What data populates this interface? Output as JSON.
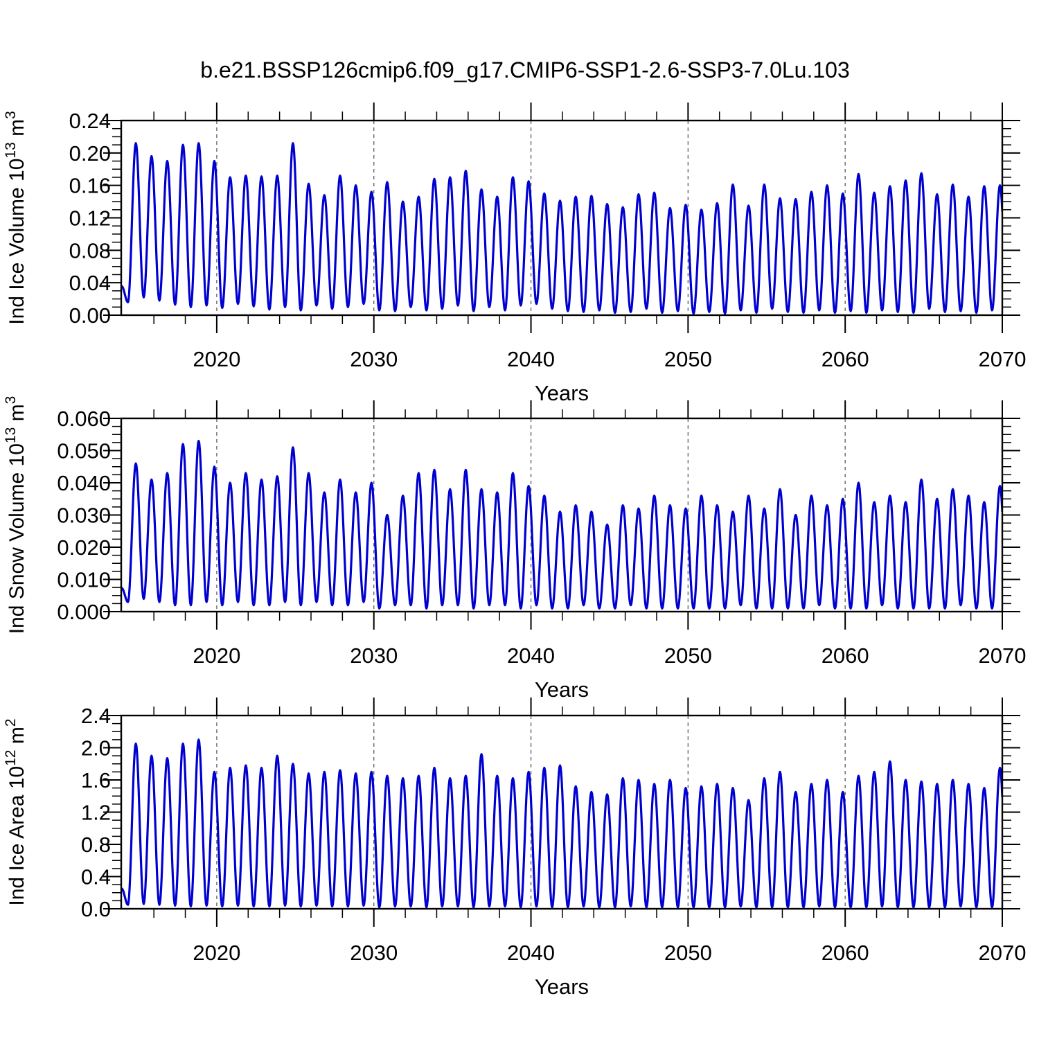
{
  "figure": {
    "title": "b.e21.BSSP126cmip6.f09_g17.CMIP6-SSP1-2.6-SSP3-7.0Lu.103",
    "background_color": "#ffffff",
    "line_color": "#0000d0",
    "axis_color": "#000000",
    "grid_color": "#666666"
  },
  "chart_data": [
    {
      "type": "line",
      "panel": "ice-volume",
      "xlabel": "Years",
      "ylabel_text": "Ind Ice Volume 10^13 m^3",
      "ylabel_parts": {
        "base": "Ind Ice Volume 10",
        "exp": "13",
        "mid": " m",
        "exp2": "3"
      },
      "x_range": [
        2013.92,
        2070
      ],
      "x_major_ticks": [
        2020,
        2030,
        2040,
        2050,
        2060,
        2070
      ],
      "x_minor_step": 2,
      "grid_decades": [
        2020,
        2030,
        2040,
        2050,
        2060
      ],
      "grid_style": "dashed-vertical",
      "ylim": [
        0,
        0.24
      ],
      "y_major_ticks": [
        0,
        0.04,
        0.08,
        0.12,
        0.16,
        0.2,
        0.24
      ],
      "ytick_labels": [
        "0.00",
        "0.04",
        "0.08",
        "0.12",
        "0.16",
        "0.20",
        "0.24"
      ],
      "y_minor_step": 0.01,
      "series": [
        {
          "name": "monthly-ice-volume",
          "start_year": 2014,
          "peak_phase": 0.85,
          "trough_phase": 0.35,
          "annual_peaks": [
            0.212,
            0.196,
            0.19,
            0.21,
            0.212,
            0.19,
            0.17,
            0.172,
            0.171,
            0.172,
            0.212,
            0.162,
            0.148,
            0.172,
            0.16,
            0.152,
            0.164,
            0.14,
            0.146,
            0.168,
            0.17,
            0.178,
            0.155,
            0.146,
            0.17,
            0.165,
            0.15,
            0.141,
            0.146,
            0.147,
            0.137,
            0.133,
            0.149,
            0.151,
            0.132,
            0.136,
            0.13,
            0.138,
            0.161,
            0.135,
            0.161,
            0.144,
            0.143,
            0.152,
            0.16,
            0.15,
            0.174,
            0.151,
            0.159,
            0.166,
            0.175,
            0.149,
            0.161,
            0.146,
            0.159,
            0.16
          ],
          "annual_troughs": [
            0.016,
            0.022,
            0.018,
            0.013,
            0.01,
            0.012,
            0.009,
            0.014,
            0.011,
            0.007,
            0.01,
            0.006,
            0.012,
            0.008,
            0.01,
            0.014,
            0.006,
            0.005,
            0.01,
            0.006,
            0.008,
            0.012,
            0.005,
            0.01,
            0.006,
            0.012,
            0.014,
            0.008,
            0.005,
            0.004,
            0.006,
            0.003,
            0.004,
            0.008,
            0.003,
            0.005,
            0.002,
            0.004,
            0.002,
            0.006,
            0.003,
            0.008,
            0.004,
            0.003,
            0.006,
            0.003,
            0.005,
            0.003,
            0.006,
            0.004,
            0.003,
            0.008,
            0.004,
            0.005,
            0.003,
            0.006
          ]
        }
      ]
    },
    {
      "type": "line",
      "panel": "snow-volume",
      "xlabel": "Years",
      "ylabel_text": "Ind Snow Volume 10^13 m^3",
      "ylabel_parts": {
        "base": "Ind Snow Volume 10",
        "exp": "13",
        "mid": " m",
        "exp2": "3"
      },
      "x_range": [
        2013.92,
        2070
      ],
      "x_major_ticks": [
        2020,
        2030,
        2040,
        2050,
        2060,
        2070
      ],
      "x_minor_step": 2,
      "grid_decades": [
        2020,
        2030,
        2040,
        2050,
        2060
      ],
      "grid_style": "dashed-vertical",
      "ylim": [
        0,
        0.06
      ],
      "y_major_ticks": [
        0,
        0.01,
        0.02,
        0.03,
        0.04,
        0.05,
        0.06
      ],
      "ytick_labels": [
        "0.000",
        "0.010",
        "0.020",
        "0.030",
        "0.040",
        "0.050",
        "0.060"
      ],
      "y_minor_step": 0.0025,
      "series": [
        {
          "name": "monthly-snow-volume",
          "start_year": 2014,
          "peak_phase": 0.85,
          "trough_phase": 0.35,
          "annual_peaks": [
            0.046,
            0.041,
            0.043,
            0.052,
            0.053,
            0.045,
            0.04,
            0.043,
            0.041,
            0.042,
            0.051,
            0.043,
            0.037,
            0.041,
            0.037,
            0.04,
            0.03,
            0.036,
            0.043,
            0.044,
            0.038,
            0.044,
            0.038,
            0.037,
            0.043,
            0.039,
            0.036,
            0.031,
            0.033,
            0.031,
            0.027,
            0.033,
            0.032,
            0.036,
            0.033,
            0.032,
            0.036,
            0.033,
            0.031,
            0.036,
            0.032,
            0.038,
            0.03,
            0.036,
            0.033,
            0.035,
            0.04,
            0.034,
            0.036,
            0.034,
            0.041,
            0.035,
            0.038,
            0.036,
            0.034,
            0.039
          ],
          "annual_troughs": [
            0.003,
            0.004,
            0.003,
            0.002,
            0.002,
            0.003,
            0.002,
            0.003,
            0.002,
            0.002,
            0.003,
            0.002,
            0.003,
            0.002,
            0.002,
            0.003,
            0.001,
            0.002,
            0.002,
            0.001,
            0.002,
            0.002,
            0.001,
            0.002,
            0.002,
            0.001,
            0.002,
            0.001,
            0.001,
            0.002,
            0.001,
            0.001,
            0.002,
            0.001,
            0.001,
            0.001,
            0.001,
            0.001,
            0.001,
            0.002,
            0.001,
            0.001,
            0.001,
            0.001,
            0.002,
            0.001,
            0.001,
            0.001,
            0.002,
            0.001,
            0.001,
            0.001,
            0.001,
            0.002,
            0.001,
            0.001
          ]
        }
      ]
    },
    {
      "type": "line",
      "panel": "ice-area",
      "xlabel": "Years",
      "ylabel_text": "Ind Ice Area 10^12 m^2",
      "ylabel_parts": {
        "base": "Ind Ice Area 10",
        "exp": "12",
        "mid": " m",
        "exp2": "2"
      },
      "x_range": [
        2013.92,
        2070
      ],
      "x_major_ticks": [
        2020,
        2030,
        2040,
        2050,
        2060,
        2070
      ],
      "x_minor_step": 2,
      "grid_decades": [
        2020,
        2030,
        2040,
        2050,
        2060
      ],
      "grid_style": "dashed-vertical",
      "ylim": [
        0,
        2.4
      ],
      "y_major_ticks": [
        0,
        0.4,
        0.8,
        1.2,
        1.6,
        2.0,
        2.4
      ],
      "ytick_labels": [
        "0.0",
        "0.4",
        "0.8",
        "1.2",
        "1.6",
        "2.0",
        "2.4"
      ],
      "y_minor_step": 0.1,
      "series": [
        {
          "name": "monthly-ice-area",
          "start_year": 2014,
          "peak_phase": 0.85,
          "trough_phase": 0.35,
          "annual_peaks": [
            2.05,
            1.9,
            1.87,
            2.05,
            2.1,
            1.7,
            1.75,
            1.78,
            1.75,
            1.9,
            1.8,
            1.68,
            1.7,
            1.72,
            1.68,
            1.7,
            1.65,
            1.62,
            1.65,
            1.75,
            1.62,
            1.65,
            1.92,
            1.65,
            1.62,
            1.7,
            1.75,
            1.78,
            1.52,
            1.45,
            1.42,
            1.62,
            1.6,
            1.55,
            1.6,
            1.5,
            1.52,
            1.55,
            1.5,
            1.35,
            1.62,
            1.7,
            1.45,
            1.55,
            1.6,
            1.45,
            1.65,
            1.7,
            1.83,
            1.6,
            1.58,
            1.55,
            1.6,
            1.55,
            1.5,
            1.75
          ],
          "annual_troughs": [
            0.05,
            0.06,
            0.05,
            0.04,
            0.03,
            0.04,
            0.03,
            0.04,
            0.03,
            0.03,
            0.04,
            0.03,
            0.04,
            0.03,
            0.03,
            0.04,
            0.02,
            0.03,
            0.03,
            0.02,
            0.03,
            0.03,
            0.02,
            0.03,
            0.03,
            0.02,
            0.03,
            0.02,
            0.02,
            0.03,
            0.02,
            0.02,
            0.03,
            0.02,
            0.02,
            0.02,
            0.02,
            0.02,
            0.02,
            0.03,
            0.02,
            0.02,
            0.02,
            0.02,
            0.03,
            0.02,
            0.02,
            0.02,
            0.03,
            0.02,
            0.02,
            0.02,
            0.02,
            0.03,
            0.02,
            0.02
          ]
        }
      ]
    }
  ]
}
